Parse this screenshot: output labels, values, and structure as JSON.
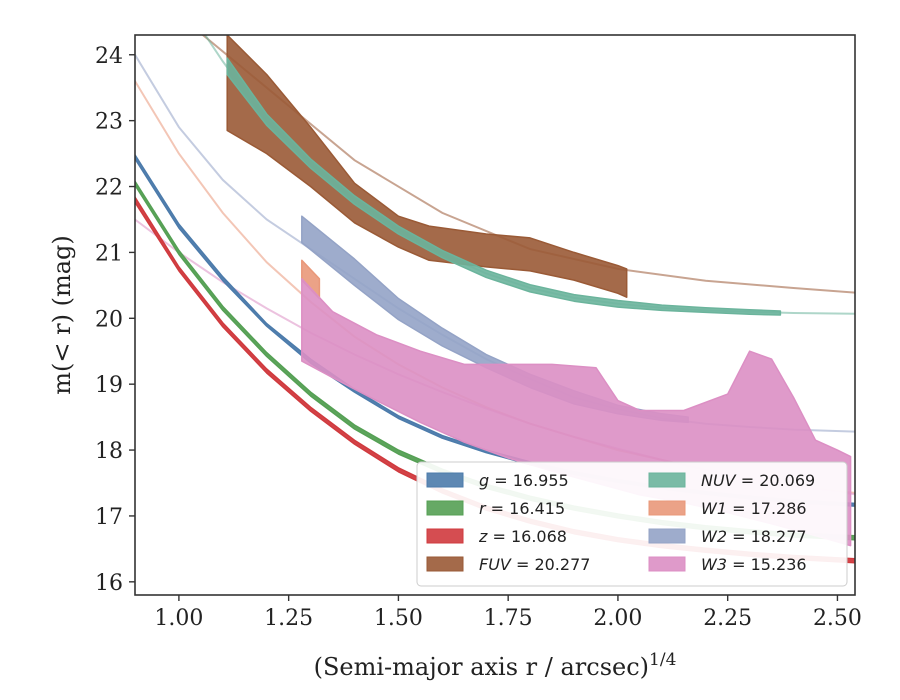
{
  "chart_data": {
    "type": "line",
    "xlabel": "(Semi-major axis r / arcsec)",
    "xlabel_sup": "1/4",
    "ylabel": "m(< r) (mag)",
    "xlim": [
      0.9,
      2.54
    ],
    "ylim": [
      24.3,
      15.8
    ],
    "y_inverted": true,
    "xticks": [
      1.0,
      1.25,
      1.5,
      1.75,
      2.0,
      2.25,
      2.5
    ],
    "xtick_labels": [
      "1.00",
      "1.25",
      "1.50",
      "1.75",
      "2.00",
      "2.25",
      "2.50"
    ],
    "yticks": [
      16,
      17,
      18,
      19,
      20,
      21,
      22,
      23,
      24
    ],
    "ytick_labels": [
      "16",
      "17",
      "18",
      "19",
      "20",
      "21",
      "22",
      "23",
      "24"
    ],
    "legend_position": "lower-right",
    "series": [
      {
        "name": "g = 16.955",
        "band": "g",
        "value": "16.955",
        "color": "#4c7bab",
        "model": {
          "x": [
            0.9,
            1.0,
            1.1,
            1.2,
            1.3,
            1.4,
            1.5,
            1.6,
            1.7,
            1.8,
            1.9,
            2.0,
            2.1,
            2.2,
            2.3,
            2.4,
            2.54
          ],
          "y": [
            22.45,
            21.4,
            20.6,
            19.9,
            19.35,
            18.9,
            18.5,
            18.2,
            17.98,
            17.8,
            17.65,
            17.53,
            17.43,
            17.35,
            17.28,
            17.22,
            17.17
          ]
        },
        "band_upper": {
          "x": [
            0.9,
            1.0,
            1.1,
            1.2,
            1.3,
            1.4,
            1.5,
            1.6,
            1.7,
            1.8,
            1.9,
            2.0,
            2.1,
            2.2,
            2.3,
            2.4,
            2.54
          ],
          "y": [
            22.42,
            21.37,
            20.57,
            19.88,
            19.32,
            18.88,
            18.48,
            18.18,
            17.96,
            17.78,
            17.63,
            17.51,
            17.41,
            17.33,
            17.26,
            17.2,
            17.15
          ]
        },
        "band_lower": {
          "x": [
            0.9,
            1.0,
            1.1,
            1.2,
            1.3,
            1.4,
            1.5,
            1.6,
            1.7,
            1.8,
            1.9,
            2.0,
            2.1,
            2.2,
            2.3,
            2.4,
            2.54
          ],
          "y": [
            22.48,
            21.43,
            20.63,
            19.92,
            19.38,
            18.92,
            18.52,
            18.22,
            18.0,
            17.82,
            17.67,
            17.55,
            17.45,
            17.37,
            17.3,
            17.24,
            17.19
          ]
        }
      },
      {
        "name": "r = 16.415",
        "band": "r",
        "value": "16.415",
        "color": "#55a054",
        "model": {
          "x": [
            0.9,
            1.0,
            1.1,
            1.2,
            1.3,
            1.4,
            1.5,
            1.6,
            1.7,
            1.8,
            1.9,
            2.0,
            2.1,
            2.2,
            2.3,
            2.4,
            2.54
          ],
          "y": [
            22.05,
            21.0,
            20.15,
            19.45,
            18.85,
            18.35,
            17.97,
            17.68,
            17.45,
            17.27,
            17.12,
            17.0,
            16.9,
            16.82,
            16.76,
            16.71,
            16.67
          ]
        },
        "band_upper": {
          "x": [
            0.9,
            1.0,
            1.1,
            1.2,
            1.3,
            1.4,
            1.5,
            1.6,
            1.7,
            1.8,
            1.9,
            2.0,
            2.1,
            2.2,
            2.3,
            2.4,
            2.54
          ],
          "y": [
            22.02,
            20.97,
            20.12,
            19.42,
            18.82,
            18.32,
            17.94,
            17.65,
            17.42,
            17.24,
            17.09,
            16.97,
            16.87,
            16.79,
            16.73,
            16.68,
            16.64
          ]
        },
        "band_lower": {
          "x": [
            0.9,
            1.0,
            1.1,
            1.2,
            1.3,
            1.4,
            1.5,
            1.6,
            1.7,
            1.8,
            1.9,
            2.0,
            2.1,
            2.2,
            2.3,
            2.4,
            2.54
          ],
          "y": [
            22.08,
            21.03,
            20.18,
            19.48,
            18.88,
            18.38,
            18.0,
            17.71,
            17.48,
            17.3,
            17.15,
            17.03,
            16.93,
            16.85,
            16.79,
            16.74,
            16.7
          ]
        }
      },
      {
        "name": "z = 16.068",
        "band": "z",
        "value": "16.068",
        "color": "#d03a3e",
        "model": {
          "x": [
            0.9,
            1.0,
            1.1,
            1.2,
            1.3,
            1.4,
            1.5,
            1.6,
            1.7,
            1.8,
            1.9,
            2.0,
            2.1,
            2.2,
            2.3,
            2.4,
            2.54
          ],
          "y": [
            21.8,
            20.75,
            19.9,
            19.2,
            18.62,
            18.12,
            17.7,
            17.38,
            17.12,
            16.92,
            16.76,
            16.64,
            16.55,
            16.48,
            16.42,
            16.37,
            16.32
          ]
        },
        "band_upper": {
          "x": [
            0.9,
            1.0,
            1.1,
            1.2,
            1.3,
            1.4,
            1.5,
            1.6,
            1.7,
            1.8,
            1.9,
            2.0,
            2.1,
            2.2,
            2.3,
            2.4,
            2.54
          ],
          "y": [
            21.76,
            20.72,
            19.87,
            19.17,
            18.59,
            18.09,
            17.67,
            17.35,
            17.09,
            16.89,
            16.73,
            16.61,
            16.52,
            16.45,
            16.39,
            16.34,
            16.29
          ]
        },
        "band_lower": {
          "x": [
            0.9,
            1.0,
            1.1,
            1.2,
            1.3,
            1.4,
            1.5,
            1.6,
            1.7,
            1.8,
            1.9,
            2.0,
            2.1,
            2.2,
            2.3,
            2.4,
            2.54
          ],
          "y": [
            21.84,
            20.78,
            19.93,
            19.23,
            18.65,
            18.15,
            17.73,
            17.41,
            17.15,
            16.95,
            16.79,
            16.67,
            16.58,
            16.51,
            16.45,
            16.4,
            16.35
          ]
        }
      },
      {
        "name": "FUV = 20.277",
        "band": "FUV",
        "value": "20.277",
        "color": "#9a5a36",
        "model": {
          "x": [
            1.0,
            1.2,
            1.4,
            1.6,
            1.8,
            2.0,
            2.2,
            2.4,
            2.54
          ],
          "y": [
            24.6,
            23.5,
            22.4,
            21.6,
            21.05,
            20.75,
            20.57,
            20.46,
            20.39
          ]
        },
        "band_upper": {
          "x": [
            1.11,
            1.2,
            1.3,
            1.4,
            1.5,
            1.57,
            1.7,
            1.8,
            1.9,
            2.0,
            2.02
          ],
          "y": [
            22.85,
            22.5,
            22.0,
            21.45,
            21.08,
            20.88,
            20.78,
            20.72,
            20.58,
            20.38,
            20.32
          ]
        },
        "band_lower": {
          "x": [
            1.11,
            1.2,
            1.3,
            1.4,
            1.5,
            1.57,
            1.7,
            1.8,
            1.9,
            2.0,
            2.02
          ],
          "y": [
            24.3,
            23.7,
            22.9,
            22.05,
            21.55,
            21.4,
            21.28,
            21.22,
            21.0,
            20.8,
            20.75
          ]
        }
      },
      {
        "name": "NUV = 20.069",
        "band": "NUV",
        "value": "20.069",
        "color": "#6bb49c",
        "model": {
          "x": [
            1.0,
            1.1,
            1.2,
            1.3,
            1.4,
            1.5,
            1.6,
            1.7,
            1.8,
            1.9,
            2.0,
            2.1,
            2.2,
            2.3,
            2.4,
            2.54
          ],
          "y": [
            24.9,
            23.9,
            23.0,
            22.35,
            21.8,
            21.35,
            20.98,
            20.68,
            20.46,
            20.31,
            20.22,
            20.16,
            20.12,
            20.1,
            20.08,
            20.07
          ]
        },
        "band_upper": {
          "x": [
            1.11,
            1.2,
            1.3,
            1.4,
            1.5,
            1.6,
            1.7,
            1.8,
            1.9,
            2.0,
            2.1,
            2.2,
            2.3,
            2.37
          ],
          "y": [
            23.7,
            22.93,
            22.28,
            21.73,
            21.28,
            20.92,
            20.62,
            20.4,
            20.26,
            20.17,
            20.12,
            20.09,
            20.06,
            20.05
          ]
        },
        "band_lower": {
          "x": [
            1.11,
            1.2,
            1.3,
            1.4,
            1.5,
            1.6,
            1.7,
            1.8,
            1.9,
            2.0,
            2.1,
            2.2,
            2.3,
            2.37
          ],
          "y": [
            23.95,
            23.1,
            22.42,
            21.86,
            21.4,
            21.03,
            20.73,
            20.51,
            20.36,
            20.27,
            20.2,
            20.16,
            20.13,
            20.11
          ]
        }
      },
      {
        "name": "W1 = 17.286",
        "band": "W1",
        "value": "17.286",
        "color": "#e9987a",
        "model": {
          "x": [
            0.9,
            1.0,
            1.1,
            1.2,
            1.3,
            1.4,
            1.5,
            1.6,
            1.7,
            1.8,
            1.9,
            2.0,
            2.1,
            2.2,
            2.3,
            2.4,
            2.54
          ],
          "y": [
            23.6,
            22.5,
            21.6,
            20.85,
            20.25,
            19.72,
            19.3,
            18.95,
            18.65,
            18.4,
            18.2,
            18.0,
            17.85,
            17.7,
            17.55,
            17.45,
            17.35
          ]
        },
        "band_upper": {
          "x": [
            1.28,
            1.32
          ],
          "y": [
            20.58,
            20.3
          ]
        },
        "band_lower": {
          "x": [
            1.28,
            1.32
          ],
          "y": [
            20.88,
            20.6
          ]
        }
      },
      {
        "name": "W2 = 18.277",
        "band": "W2",
        "value": "18.277",
        "color": "#94a3c6",
        "model": {
          "x": [
            0.9,
            1.0,
            1.1,
            1.2,
            1.3,
            1.4,
            1.5,
            1.6,
            1.7,
            1.8,
            1.9,
            2.0,
            2.1,
            2.2,
            2.3,
            2.4,
            2.54
          ],
          "y": [
            24.0,
            22.9,
            22.1,
            21.5,
            21.05,
            20.6,
            20.15,
            19.75,
            19.38,
            19.08,
            18.8,
            18.62,
            18.48,
            18.4,
            18.35,
            18.31,
            18.28
          ]
        },
        "band_upper": {
          "x": [
            1.28,
            1.4,
            1.5,
            1.6,
            1.7,
            1.8,
            1.9,
            2.0,
            2.1,
            2.16
          ],
          "y": [
            21.15,
            20.5,
            19.98,
            19.58,
            19.25,
            18.95,
            18.7,
            18.55,
            18.45,
            18.42
          ]
        },
        "band_lower": {
          "x": [
            1.28,
            1.4,
            1.5,
            1.6,
            1.7,
            1.8,
            1.9,
            2.0,
            2.1,
            2.16
          ],
          "y": [
            21.55,
            20.9,
            20.3,
            19.85,
            19.45,
            19.15,
            18.9,
            18.68,
            18.55,
            18.5
          ]
        }
      },
      {
        "name": "W3 = 15.236",
        "band": "W3",
        "value": "15.236",
        "color": "#dc8fc4",
        "model": {
          "x": [
            0.9,
            1.0,
            1.1,
            1.2,
            1.3,
            1.4,
            1.5,
            1.6,
            1.7,
            1.8,
            1.9,
            2.0,
            2.1,
            2.2,
            2.3,
            2.4,
            2.54
          ],
          "y": [
            21.5,
            21.0,
            20.55,
            20.15,
            19.78,
            19.45,
            19.15,
            18.88,
            18.63,
            18.4,
            18.2,
            18.02,
            17.85,
            17.7,
            17.56,
            17.45,
            17.33
          ]
        },
        "band_upper": {
          "x": [
            1.28,
            1.35,
            1.45,
            1.55,
            1.65,
            1.75,
            1.85,
            1.95,
            2.05,
            2.15,
            2.25,
            2.35,
            2.45,
            2.53
          ],
          "y": [
            19.35,
            19.1,
            18.75,
            18.42,
            18.12,
            17.88,
            17.68,
            17.5,
            17.32,
            17.2,
            17.05,
            16.88,
            16.7,
            16.55
          ]
        },
        "band_lower": {
          "x": [
            1.28,
            1.35,
            1.45,
            1.55,
            1.65,
            1.75,
            1.85,
            1.95,
            2.0,
            2.05,
            2.15,
            2.25,
            2.3,
            2.35,
            2.4,
            2.45,
            2.5,
            2.53
          ],
          "y": [
            20.6,
            20.1,
            19.75,
            19.5,
            19.3,
            19.3,
            19.3,
            19.25,
            18.75,
            18.6,
            18.6,
            18.85,
            19.5,
            19.38,
            18.8,
            18.15,
            18.0,
            17.9
          ]
        }
      }
    ]
  }
}
